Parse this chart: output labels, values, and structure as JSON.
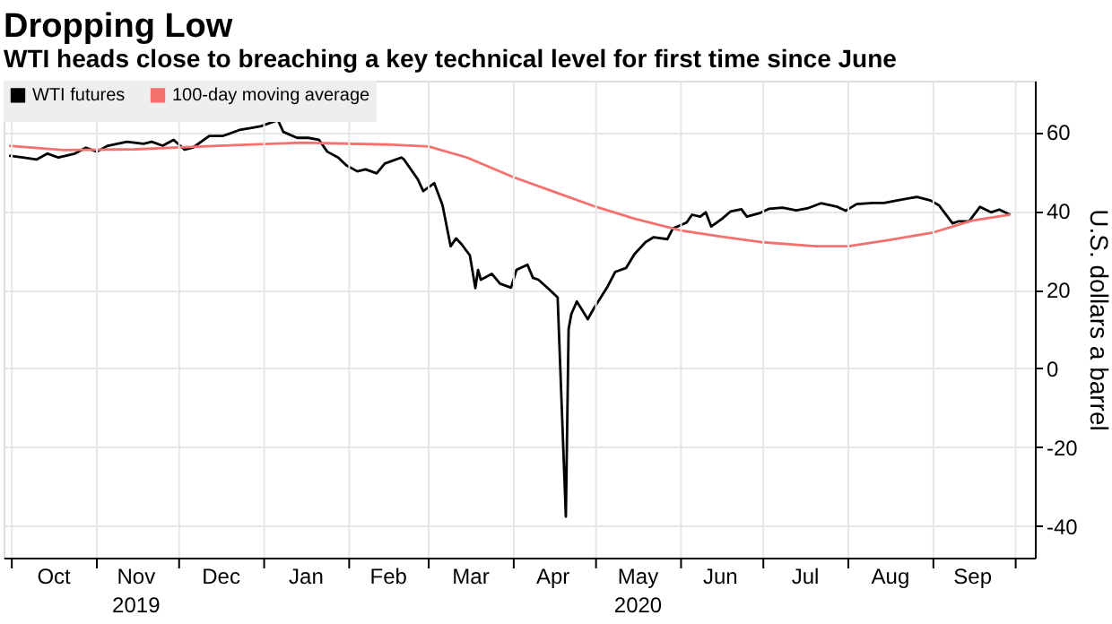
{
  "chart_data": {
    "type": "line",
    "title": "Dropping Low",
    "subtitle": "WTI heads close to breaching a key technical level for first time since June",
    "ylabel": "U.S. dollars a barrel",
    "xlim": [
      "2019-09-28",
      "2020-10-08"
    ],
    "xticks": [
      {
        "value": "2019-10-01",
        "label": null
      },
      {
        "value": "2019-10-16",
        "label": "Oct"
      },
      {
        "value": "2019-11-01",
        "label": null
      },
      {
        "value": "2019-11-15",
        "label": "Nov\n2019"
      },
      {
        "value": "2019-12-01",
        "label": null
      },
      {
        "value": "2019-12-16",
        "label": "Dec"
      },
      {
        "value": "2020-01-01",
        "label": null
      },
      {
        "value": "2020-01-16",
        "label": "Jan"
      },
      {
        "value": "2020-02-01",
        "label": null
      },
      {
        "value": "2020-02-15",
        "label": "Feb"
      },
      {
        "value": "2020-03-01",
        "label": null
      },
      {
        "value": "2020-03-16",
        "label": "Mar"
      },
      {
        "value": "2020-04-01",
        "label": null
      },
      {
        "value": "2020-04-15",
        "label": "Apr"
      },
      {
        "value": "2020-05-01",
        "label": null
      },
      {
        "value": "2020-05-16",
        "label": "May\n2020"
      },
      {
        "value": "2020-06-01",
        "label": null
      },
      {
        "value": "2020-06-15",
        "label": "Jun"
      },
      {
        "value": "2020-07-01",
        "label": null
      },
      {
        "value": "2020-07-16",
        "label": "Jul"
      },
      {
        "value": "2020-08-01",
        "label": null
      },
      {
        "value": "2020-08-16",
        "label": "Aug"
      },
      {
        "value": "2020-09-01",
        "label": null
      },
      {
        "value": "2020-09-15",
        "label": "Sep"
      },
      {
        "value": "2020-10-01",
        "label": null
      }
    ],
    "ylim": [
      -48,
      73
    ],
    "yticks": [
      -40,
      -20,
      0,
      20,
      40,
      60
    ],
    "grid": true,
    "legend": "top left",
    "marker": "none",
    "line_style": "solid",
    "series": [
      {
        "name": "WTI futures",
        "color": "#000000",
        "x": [
          "2019-09-30",
          "2019-10-05",
          "2019-10-10",
          "2019-10-14",
          "2019-10-18",
          "2019-10-24",
          "2019-10-28",
          "2019-11-01",
          "2019-11-05",
          "2019-11-12",
          "2019-11-18",
          "2019-11-21",
          "2019-11-25",
          "2019-11-29",
          "2019-12-03",
          "2019-12-06",
          "2019-12-12",
          "2019-12-17",
          "2019-12-23",
          "2019-12-27",
          "2019-12-31",
          "2020-01-06",
          "2020-01-08",
          "2020-01-13",
          "2020-01-17",
          "2020-01-21",
          "2020-01-24",
          "2020-01-28",
          "2020-01-31",
          "2020-02-04",
          "2020-02-07",
          "2020-02-11",
          "2020-02-14",
          "2020-02-20",
          "2020-02-21",
          "2020-02-26",
          "2020-02-28",
          "2020-03-03",
          "2020-03-06",
          "2020-03-09",
          "2020-03-11",
          "2020-03-13",
          "2020-03-16",
          "2020-03-18",
          "2020-03-19",
          "2020-03-20",
          "2020-03-24",
          "2020-03-27",
          "2020-03-31",
          "2020-04-02",
          "2020-04-06",
          "2020-04-08",
          "2020-04-10",
          "2020-04-14",
          "2020-04-17",
          "2020-04-20",
          "2020-04-21",
          "2020-04-22",
          "2020-04-24",
          "2020-04-28",
          "2020-04-30",
          "2020-05-05",
          "2020-05-08",
          "2020-05-12",
          "2020-05-15",
          "2020-05-19",
          "2020-05-22",
          "2020-05-27",
          "2020-05-29",
          "2020-06-03",
          "2020-06-05",
          "2020-06-08",
          "2020-06-10",
          "2020-06-12",
          "2020-06-16",
          "2020-06-19",
          "2020-06-23",
          "2020-06-25",
          "2020-06-30",
          "2020-07-03",
          "2020-07-08",
          "2020-07-13",
          "2020-07-17",
          "2020-07-22",
          "2020-07-28",
          "2020-07-31",
          "2020-08-04",
          "2020-08-10",
          "2020-08-14",
          "2020-08-20",
          "2020-08-26",
          "2020-08-31",
          "2020-09-03",
          "2020-09-08",
          "2020-09-10",
          "2020-09-14",
          "2020-09-18",
          "2020-09-22",
          "2020-09-25",
          "2020-09-29"
        ],
        "values": [
          54,
          53.5,
          53,
          54.5,
          53.5,
          54.5,
          56,
          55,
          56.5,
          57.5,
          57,
          57.5,
          56.5,
          58,
          55.5,
          56,
          59,
          59,
          60.5,
          61,
          61.5,
          63,
          60,
          58.5,
          58.5,
          58,
          55,
          53.5,
          51.5,
          50,
          50.5,
          49.5,
          52,
          53.5,
          53,
          48,
          45,
          47,
          41.5,
          31,
          33,
          31.5,
          28.7,
          20.4,
          25,
          22.5,
          24,
          21.5,
          20.5,
          25,
          26.3,
          23,
          22.5,
          20,
          18,
          -37.6,
          10,
          13.8,
          17,
          12.5,
          15,
          20.5,
          24.5,
          25.5,
          29,
          32,
          33.3,
          32.8,
          35.5,
          37,
          39,
          38.5,
          39.6,
          36,
          38,
          39.8,
          40.4,
          38.5,
          39.5,
          40.5,
          40.8,
          40.1,
          40.6,
          41.9,
          41,
          40,
          41.7,
          42,
          42,
          42.8,
          43.5,
          42.6,
          41.4,
          36.8,
          37.3,
          37.3,
          41,
          39.6,
          40.3,
          39
        ]
      },
      {
        "name": "100-day moving average",
        "color": "#f4716e",
        "x": [
          "2019-09-30",
          "2019-10-20",
          "2019-11-15",
          "2019-12-15",
          "2020-01-15",
          "2020-02-15",
          "2020-03-01",
          "2020-03-15",
          "2020-04-01",
          "2020-04-15",
          "2020-05-01",
          "2020-05-15",
          "2020-06-01",
          "2020-06-15",
          "2020-07-01",
          "2020-07-20",
          "2020-08-01",
          "2020-08-15",
          "2020-09-01",
          "2020-09-15",
          "2020-09-29"
        ],
        "values": [
          56.5,
          55.4,
          55.6,
          56.5,
          57.3,
          56.8,
          56.3,
          53.5,
          48.5,
          45,
          41,
          38,
          35,
          33.5,
          32,
          31,
          31,
          32.5,
          34.5,
          37.5,
          39
        ]
      }
    ]
  }
}
